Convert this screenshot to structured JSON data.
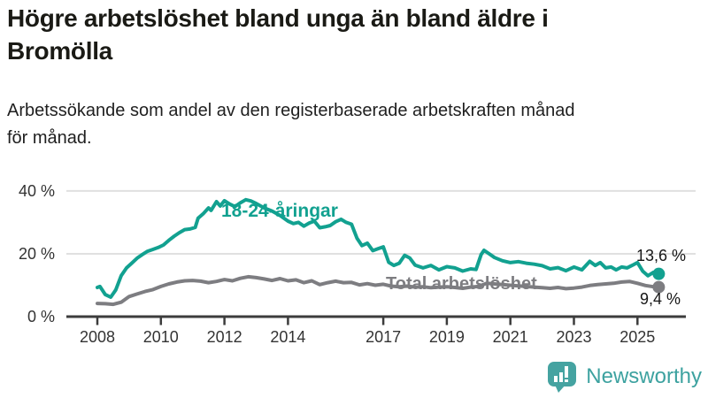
{
  "header": {
    "title": "Högre arbetslöshet bland unga än bland äldre i\nBromölla",
    "subtitle": "Arbetssökande som andel av den registerbaserade arbetskraften månad\nför månad."
  },
  "chart_data": {
    "type": "line",
    "title": "Högre arbetslöshet bland unga än bland äldre i Bromölla",
    "xlabel": "",
    "ylabel": "Arbetssökande som andel av den registerbaserade arbetskraften",
    "grid": "horizontal",
    "legend_position": "inline",
    "xlim": [
      2007.95,
      2025.9
    ],
    "ylim": [
      0,
      40
    ],
    "x_ticks": [
      2008,
      2010,
      2012,
      2014,
      2017,
      2019,
      2021,
      2023,
      2025
    ],
    "y_ticks": [
      0,
      20,
      40
    ],
    "y_tick_suffix": " %",
    "axis_color": "#3c3c3c",
    "grid_color": "#e0e0e0",
    "tick_label_color": "#333333",
    "series": [
      {
        "name": "18-24-åringar",
        "color": "#12a190",
        "end_label": "13,6 %",
        "end_value": 13.6,
        "points": [
          [
            2008.0,
            9.3
          ],
          [
            2008.08,
            9.6
          ],
          [
            2008.25,
            7.0
          ],
          [
            2008.42,
            6.2
          ],
          [
            2008.58,
            8.5
          ],
          [
            2008.75,
            13.0
          ],
          [
            2008.92,
            15.5
          ],
          [
            2009.08,
            17.0
          ],
          [
            2009.25,
            18.6
          ],
          [
            2009.42,
            19.8
          ],
          [
            2009.58,
            20.8
          ],
          [
            2009.75,
            21.4
          ],
          [
            2009.92,
            22.0
          ],
          [
            2010.08,
            22.8
          ],
          [
            2010.25,
            24.3
          ],
          [
            2010.42,
            25.6
          ],
          [
            2010.58,
            26.7
          ],
          [
            2010.75,
            27.7
          ],
          [
            2010.92,
            27.9
          ],
          [
            2011.08,
            28.4
          ],
          [
            2011.17,
            31.3
          ],
          [
            2011.33,
            32.7
          ],
          [
            2011.5,
            34.6
          ],
          [
            2011.58,
            33.8
          ],
          [
            2011.75,
            36.6
          ],
          [
            2011.87,
            35.2
          ],
          [
            2012.0,
            36.9
          ],
          [
            2012.17,
            35.8
          ],
          [
            2012.33,
            35.0
          ],
          [
            2012.5,
            36.2
          ],
          [
            2012.67,
            37.2
          ],
          [
            2012.83,
            36.8
          ],
          [
            2013.0,
            36.0
          ],
          [
            2013.25,
            34.6
          ],
          [
            2013.5,
            33.6
          ],
          [
            2013.75,
            32.2
          ],
          [
            2014.0,
            30.4
          ],
          [
            2014.17,
            29.6
          ],
          [
            2014.33,
            30.0
          ],
          [
            2014.5,
            28.8
          ],
          [
            2014.67,
            29.8
          ],
          [
            2014.83,
            30.4
          ],
          [
            2015.0,
            28.3
          ],
          [
            2015.17,
            28.6
          ],
          [
            2015.33,
            29.0
          ],
          [
            2015.5,
            30.2
          ],
          [
            2015.67,
            31.0
          ],
          [
            2015.83,
            30.0
          ],
          [
            2016.0,
            29.4
          ],
          [
            2016.17,
            25.0
          ],
          [
            2016.33,
            22.6
          ],
          [
            2016.5,
            23.4
          ],
          [
            2016.67,
            21.0
          ],
          [
            2016.83,
            21.6
          ],
          [
            2017.0,
            22.2
          ],
          [
            2017.17,
            17.3
          ],
          [
            2017.33,
            16.3
          ],
          [
            2017.5,
            17.0
          ],
          [
            2017.67,
            19.5
          ],
          [
            2017.83,
            18.7
          ],
          [
            2018.0,
            16.4
          ],
          [
            2018.25,
            15.5
          ],
          [
            2018.5,
            16.3
          ],
          [
            2018.75,
            14.9
          ],
          [
            2019.0,
            15.9
          ],
          [
            2019.25,
            15.5
          ],
          [
            2019.5,
            14.5
          ],
          [
            2019.75,
            15.2
          ],
          [
            2019.92,
            15.0
          ],
          [
            2020.08,
            19.8
          ],
          [
            2020.17,
            21.1
          ],
          [
            2020.33,
            20.0
          ],
          [
            2020.5,
            18.8
          ],
          [
            2020.75,
            17.8
          ],
          [
            2021.0,
            17.2
          ],
          [
            2021.25,
            17.5
          ],
          [
            2021.5,
            17.0
          ],
          [
            2021.75,
            16.7
          ],
          [
            2022.0,
            16.2
          ],
          [
            2022.25,
            15.2
          ],
          [
            2022.5,
            15.6
          ],
          [
            2022.75,
            14.6
          ],
          [
            2023.0,
            15.8
          ],
          [
            2023.25,
            14.9
          ],
          [
            2023.5,
            17.6
          ],
          [
            2023.67,
            16.3
          ],
          [
            2023.83,
            17.2
          ],
          [
            2024.0,
            15.5
          ],
          [
            2024.17,
            15.8
          ],
          [
            2024.33,
            14.9
          ],
          [
            2024.5,
            15.8
          ],
          [
            2024.67,
            15.5
          ],
          [
            2024.83,
            16.3
          ],
          [
            2025.0,
            17.2
          ],
          [
            2025.17,
            14.4
          ],
          [
            2025.33,
            13.0
          ],
          [
            2025.5,
            14.1
          ],
          [
            2025.67,
            13.6
          ]
        ]
      },
      {
        "name": "Total arbetslöshet",
        "color": "#7d7d81",
        "end_label": "9,4 %",
        "end_value": 9.4,
        "points": [
          [
            2008.0,
            4.2
          ],
          [
            2008.25,
            4.1
          ],
          [
            2008.5,
            3.9
          ],
          [
            2008.75,
            4.6
          ],
          [
            2009.0,
            6.4
          ],
          [
            2009.25,
            7.2
          ],
          [
            2009.5,
            8.0
          ],
          [
            2009.75,
            8.6
          ],
          [
            2010.0,
            9.6
          ],
          [
            2010.25,
            10.4
          ],
          [
            2010.5,
            11.0
          ],
          [
            2010.75,
            11.4
          ],
          [
            2011.0,
            11.5
          ],
          [
            2011.25,
            11.3
          ],
          [
            2011.5,
            10.8
          ],
          [
            2011.75,
            11.2
          ],
          [
            2012.0,
            11.8
          ],
          [
            2012.25,
            11.4
          ],
          [
            2012.5,
            12.2
          ],
          [
            2012.75,
            12.7
          ],
          [
            2013.0,
            12.4
          ],
          [
            2013.25,
            12.0
          ],
          [
            2013.5,
            11.5
          ],
          [
            2013.75,
            12.1
          ],
          [
            2014.0,
            11.4
          ],
          [
            2014.25,
            11.7
          ],
          [
            2014.5,
            10.8
          ],
          [
            2014.75,
            11.4
          ],
          [
            2015.0,
            10.2
          ],
          [
            2015.25,
            10.8
          ],
          [
            2015.5,
            11.3
          ],
          [
            2015.75,
            10.8
          ],
          [
            2016.0,
            10.9
          ],
          [
            2016.25,
            10.1
          ],
          [
            2016.5,
            10.5
          ],
          [
            2016.75,
            10.0
          ],
          [
            2017.0,
            10.3
          ],
          [
            2017.25,
            9.7
          ],
          [
            2017.5,
            9.5
          ],
          [
            2017.75,
            9.7
          ],
          [
            2018.0,
            9.4
          ],
          [
            2018.25,
            9.5
          ],
          [
            2018.5,
            9.2
          ],
          [
            2018.75,
            9.4
          ],
          [
            2019.0,
            9.5
          ],
          [
            2019.25,
            9.3
          ],
          [
            2019.5,
            9.0
          ],
          [
            2019.75,
            9.4
          ],
          [
            2020.0,
            9.6
          ],
          [
            2020.25,
            10.6
          ],
          [
            2020.5,
            10.4
          ],
          [
            2020.75,
            10.2
          ],
          [
            2021.0,
            10.0
          ],
          [
            2021.25,
            9.8
          ],
          [
            2021.5,
            9.6
          ],
          [
            2021.75,
            9.4
          ],
          [
            2022.0,
            9.2
          ],
          [
            2022.25,
            9.0
          ],
          [
            2022.5,
            9.3
          ],
          [
            2022.75,
            8.9
          ],
          [
            2023.0,
            9.1
          ],
          [
            2023.25,
            9.4
          ],
          [
            2023.5,
            9.9
          ],
          [
            2023.75,
            10.2
          ],
          [
            2024.0,
            10.4
          ],
          [
            2024.25,
            10.6
          ],
          [
            2024.5,
            11.0
          ],
          [
            2024.75,
            11.2
          ],
          [
            2025.0,
            10.6
          ],
          [
            2025.25,
            9.9
          ],
          [
            2025.5,
            9.5
          ],
          [
            2025.67,
            9.4
          ]
        ]
      }
    ]
  },
  "branding": {
    "name": "Newsworthy",
    "logo_color": "#45a3a1",
    "wordmark_color": "#3da2a0"
  }
}
